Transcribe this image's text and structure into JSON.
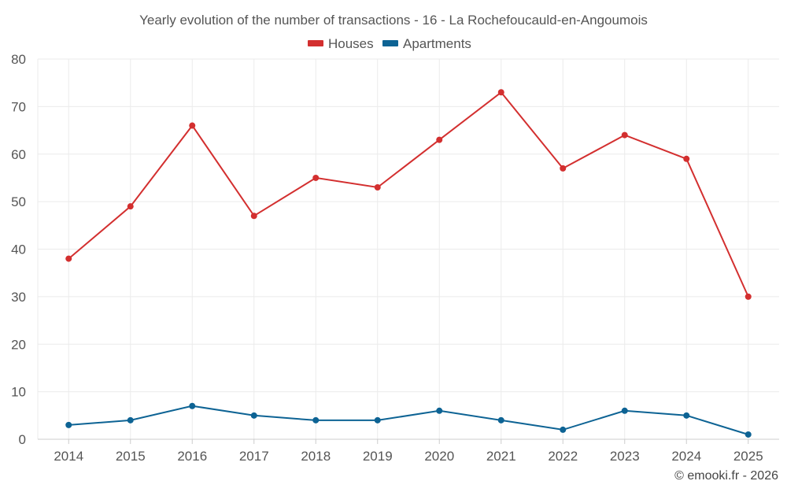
{
  "chart_data": {
    "type": "line",
    "title": "Yearly evolution of the number of transactions - 16 - La Rochefoucauld-en-Angoumois",
    "categories": [
      "2014",
      "2015",
      "2016",
      "2017",
      "2018",
      "2019",
      "2020",
      "2021",
      "2022",
      "2023",
      "2024",
      "2025"
    ],
    "series": [
      {
        "name": "Houses",
        "color": "#d32f2f",
        "values": [
          38,
          49,
          66,
          47,
          55,
          53,
          63,
          73,
          57,
          64,
          59,
          30
        ]
      },
      {
        "name": "Apartments",
        "color": "#0d6394",
        "values": [
          3,
          4,
          7,
          5,
          4,
          4,
          6,
          4,
          2,
          6,
          5,
          1
        ]
      }
    ],
    "ylim": [
      0,
      80
    ],
    "yticks": [
      0,
      10,
      20,
      30,
      40,
      50,
      60,
      70,
      80
    ],
    "xlabel": "",
    "ylabel": "",
    "grid": true,
    "legend": "top-center"
  },
  "credit": "© emooki.fr - 2026"
}
